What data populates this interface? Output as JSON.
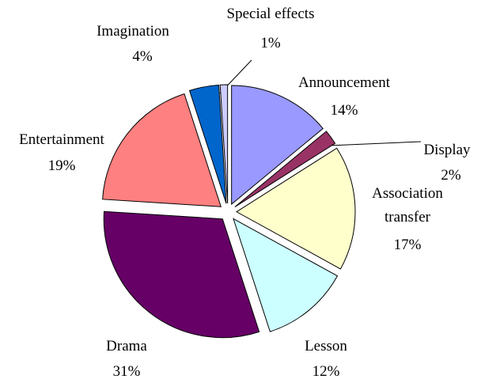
{
  "chart_data": {
    "type": "pie",
    "categories": [
      "Announcement",
      "Display",
      "Association transfer",
      "Lesson",
      "Drama",
      "Entertainment",
      "Imagination",
      "Special effects"
    ],
    "values": [
      14,
      2,
      17,
      12,
      31,
      19,
      4,
      1
    ],
    "value_labels": [
      "14%",
      "2%",
      "17%",
      "12%",
      "31%",
      "19%",
      "4%",
      "1%"
    ],
    "colors": [
      "#9999ff",
      "#993366",
      "#ffffcc",
      "#ccffff",
      "#660066",
      "#ff8080",
      "#0066cc",
      "#ccccff"
    ]
  }
}
